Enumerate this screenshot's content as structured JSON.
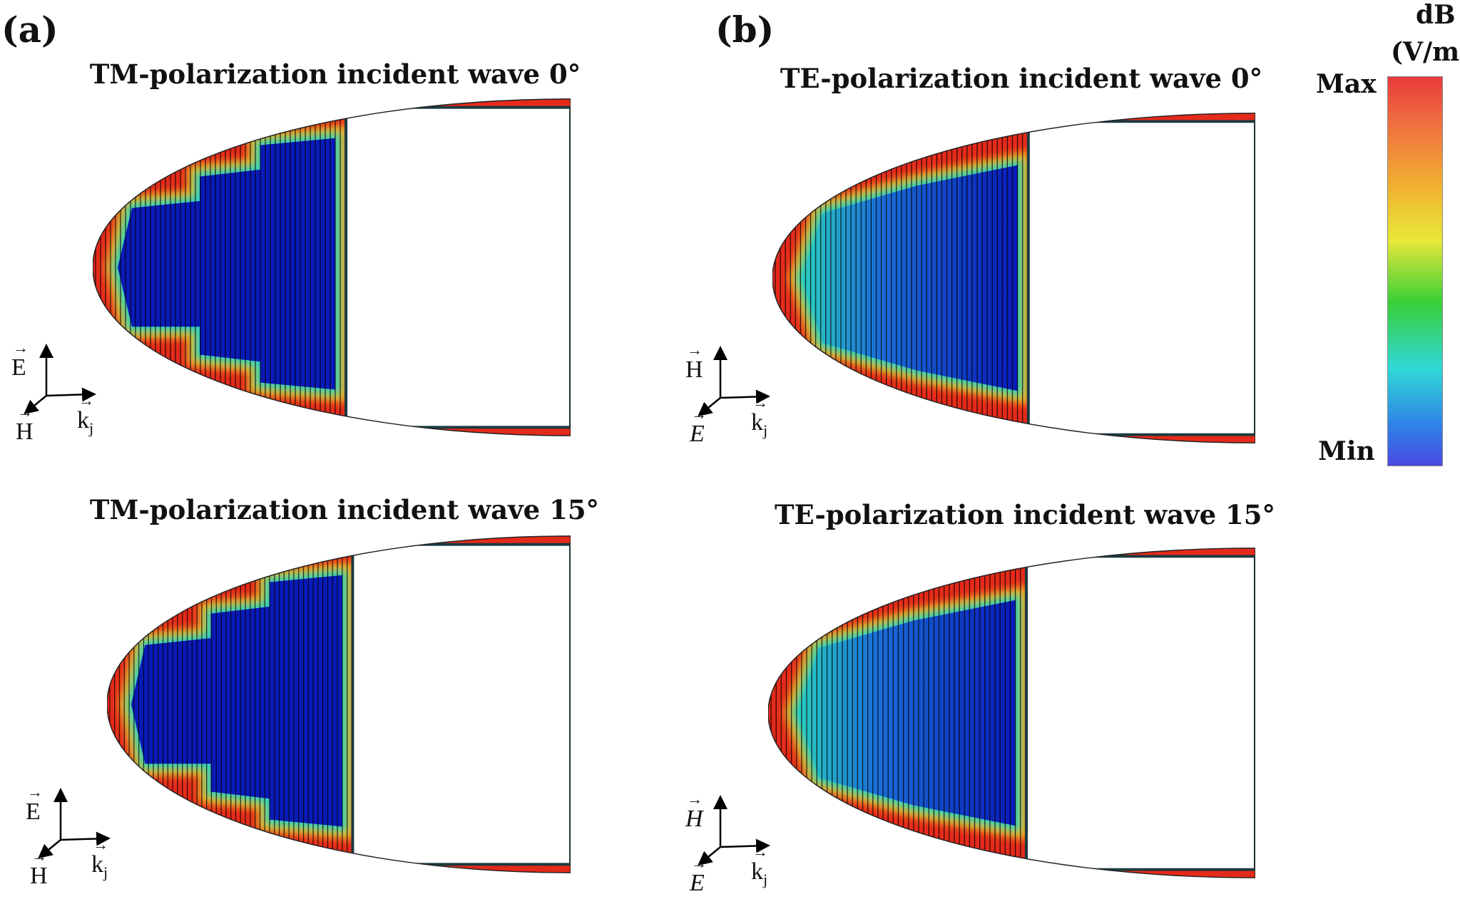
{
  "figure": {
    "panel_labels": [
      "(a)",
      "(b)"
    ],
    "panels": [
      {
        "id": "a-top",
        "title": "TM-polarization incident wave 0°",
        "mode": "TM",
        "axes": {
          "vertical": "E",
          "diagonal": "H",
          "horizontal": "k",
          "horizontal_sub": "j",
          "italic": false
        }
      },
      {
        "id": "b-top",
        "title": "TE-polarization incident wave 0°",
        "mode": "TE",
        "axes": {
          "vertical": "H",
          "diagonal": "E",
          "horizontal": "k",
          "horizontal_sub": "j",
          "italic": "diag"
        }
      },
      {
        "id": "a-bot",
        "title": "TM-polarization incident wave 15°",
        "mode": "TM",
        "axes": {
          "vertical": "E",
          "diagonal": "H",
          "horizontal": "k",
          "horizontal_sub": "j",
          "italic": false
        }
      },
      {
        "id": "b-bot",
        "title": "TE-polarization incident wave 15°",
        "mode": "TE",
        "axes": {
          "vertical": "H",
          "diagonal": "E",
          "horizontal": "k",
          "horizontal_sub": "j",
          "italic": "both"
        }
      }
    ],
    "colorbar": {
      "unit_line1": "dB",
      "unit_line2": "(V/m)",
      "max_label": "Max",
      "min_label": "Min",
      "colors": [
        "#e83a3a",
        "#f0b030",
        "#e8e838",
        "#38d038",
        "#30d8d8",
        "#3080e8",
        "#4a4ae0"
      ]
    },
    "field_colors": {
      "high": "#e42a1a",
      "mid": "#f0c020",
      "low": "#2ad0c0",
      "min": "#0a1ab8"
    }
  }
}
